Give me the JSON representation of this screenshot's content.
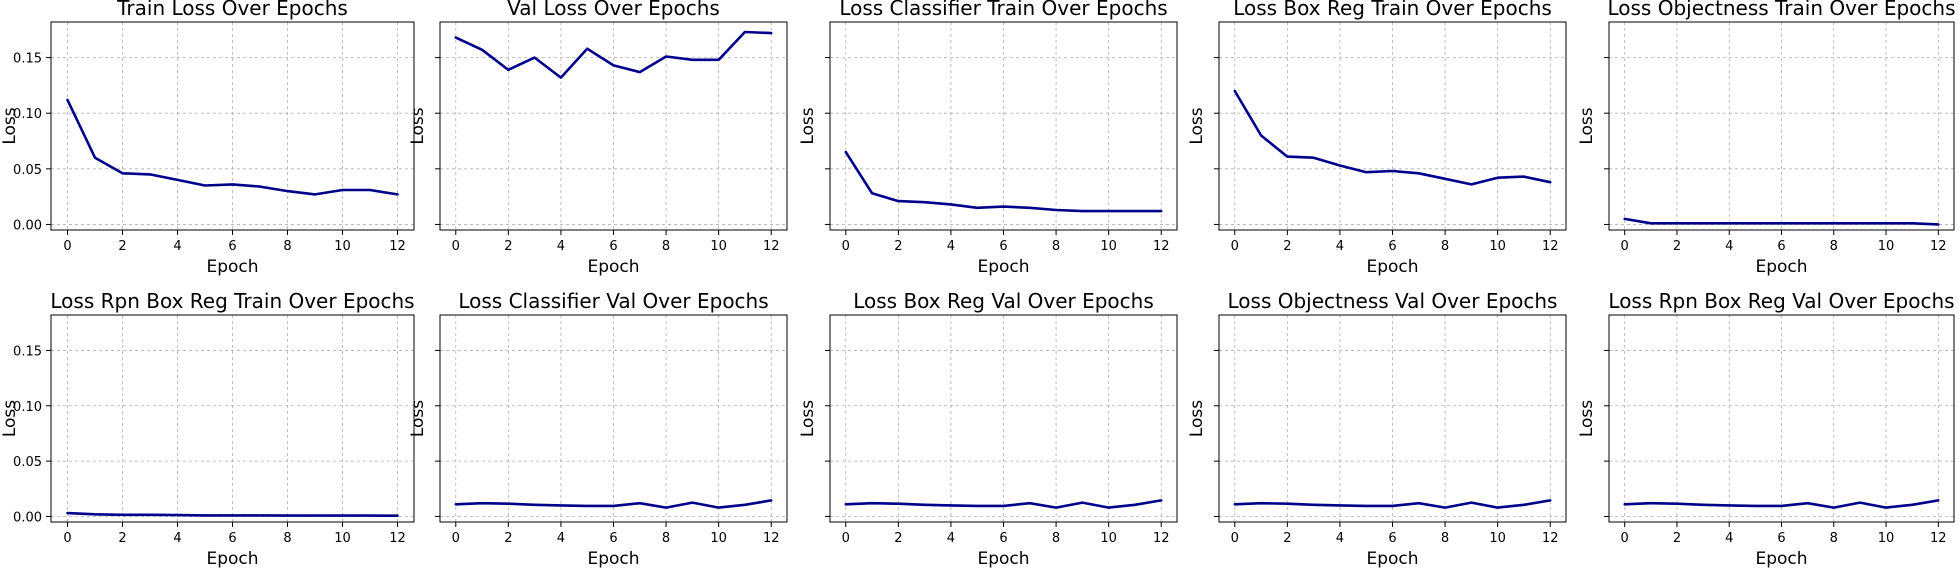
{
  "style": {
    "line_color": "#00008b",
    "grid": true
  },
  "chart_data": [
    {
      "type": "line",
      "title": "Train Loss Over Epochs",
      "xlabel": "Epoch",
      "ylabel": "Loss",
      "xlim": [
        -0.6,
        12.6
      ],
      "ylim": [
        -0.005,
        0.182
      ],
      "xticks": [
        "0",
        "2",
        "4",
        "6",
        "8",
        "10",
        "12"
      ],
      "yticks": [
        "0.00",
        "0.05",
        "0.10",
        "0.15"
      ],
      "x": [
        0,
        1,
        2,
        3,
        4,
        5,
        6,
        7,
        8,
        9,
        10,
        11,
        12
      ],
      "y": [
        0.112,
        0.06,
        0.046,
        0.045,
        0.04,
        0.035,
        0.036,
        0.034,
        0.03,
        0.027,
        0.031,
        0.031,
        0.027
      ]
    },
    {
      "type": "line",
      "title": "Val Loss Over Epochs",
      "xlabel": "Epoch",
      "ylabel": "Loss",
      "xlim": [
        -0.6,
        12.6
      ],
      "ylim": [
        -0.005,
        0.182
      ],
      "xticks": [
        "0",
        "2",
        "4",
        "6",
        "8",
        "10",
        "12"
      ],
      "yticks": [],
      "x": [
        0,
        1,
        2,
        3,
        4,
        5,
        6,
        7,
        8,
        9,
        10,
        11,
        12
      ],
      "y": [
        0.168,
        0.157,
        0.139,
        0.15,
        0.132,
        0.158,
        0.143,
        0.137,
        0.151,
        0.148,
        0.148,
        0.173,
        0.172
      ]
    },
    {
      "type": "line",
      "title": "Loss Classifier Train Over Epochs",
      "xlabel": "Epoch",
      "ylabel": "Loss",
      "xlim": [
        -0.6,
        12.6
      ],
      "ylim": [
        -0.005,
        0.182
      ],
      "xticks": [
        "0",
        "2",
        "4",
        "6",
        "8",
        "10",
        "12"
      ],
      "yticks": [],
      "x": [
        0,
        1,
        2,
        3,
        4,
        5,
        6,
        7,
        8,
        9,
        10,
        11,
        12
      ],
      "y": [
        0.065,
        0.028,
        0.021,
        0.02,
        0.018,
        0.015,
        0.016,
        0.015,
        0.013,
        0.012,
        0.012,
        0.012,
        0.012
      ]
    },
    {
      "type": "line",
      "title": "Loss Box Reg Train Over Epochs",
      "xlabel": "Epoch",
      "ylabel": "Loss",
      "xlim": [
        -0.6,
        12.6
      ],
      "ylim": [
        -0.005,
        0.182
      ],
      "xticks": [
        "0",
        "2",
        "4",
        "6",
        "8",
        "10",
        "12"
      ],
      "yticks": [],
      "x": [
        0,
        1,
        2,
        3,
        4,
        5,
        6,
        7,
        8,
        9,
        10,
        11,
        12
      ],
      "y": [
        0.12,
        0.08,
        0.061,
        0.06,
        0.053,
        0.047,
        0.048,
        0.046,
        0.041,
        0.036,
        0.042,
        0.043,
        0.038
      ]
    },
    {
      "type": "line",
      "title": "Loss Objectness Train Over Epochs",
      "xlabel": "Epoch",
      "ylabel": "Loss",
      "xlim": [
        -0.6,
        12.6
      ],
      "ylim": [
        -0.005,
        0.182
      ],
      "xticks": [
        "0",
        "2",
        "4",
        "6",
        "8",
        "10",
        "12"
      ],
      "yticks": [],
      "x": [
        0,
        1,
        2,
        3,
        4,
        5,
        6,
        7,
        8,
        9,
        10,
        11,
        12
      ],
      "y": [
        0.005,
        0.001,
        0.001,
        0.001,
        0.001,
        0.001,
        0.001,
        0.001,
        0.001,
        0.001,
        0.001,
        0.001,
        0.0
      ]
    },
    {
      "type": "line",
      "title": "Loss Rpn Box Reg Train Over Epochs",
      "xlabel": "Epoch",
      "ylabel": "Loss",
      "xlim": [
        -0.6,
        12.6
      ],
      "ylim": [
        -0.005,
        0.182
      ],
      "xticks": [
        "0",
        "2",
        "4",
        "6",
        "8",
        "10",
        "12"
      ],
      "yticks": [
        "0.00",
        "0.05",
        "0.10",
        "0.15"
      ],
      "x": [
        0,
        1,
        2,
        3,
        4,
        5,
        6,
        7,
        8,
        9,
        10,
        11,
        12
      ],
      "y": [
        0.003,
        0.002,
        0.0015,
        0.0015,
        0.0012,
        0.001,
        0.001,
        0.001,
        0.0008,
        0.0008,
        0.0008,
        0.0008,
        0.0007
      ]
    },
    {
      "type": "line",
      "title": "Loss Classifier Val Over Epochs",
      "xlabel": "Epoch",
      "ylabel": "Loss",
      "xlim": [
        -0.6,
        12.6
      ],
      "ylim": [
        -0.005,
        0.182
      ],
      "xticks": [
        "0",
        "2",
        "4",
        "6",
        "8",
        "10",
        "12"
      ],
      "yticks": [],
      "x": [
        0,
        1,
        2,
        3,
        4,
        5,
        6,
        7,
        8,
        9,
        10,
        11,
        12
      ],
      "y": [
        0.011,
        0.012,
        0.0115,
        0.0105,
        0.01,
        0.0095,
        0.0095,
        0.012,
        0.008,
        0.0125,
        0.008,
        0.0105,
        0.0145
      ]
    },
    {
      "type": "line",
      "title": "Loss Box Reg Val Over Epochs",
      "xlabel": "Epoch",
      "ylabel": "Loss",
      "xlim": [
        -0.6,
        12.6
      ],
      "ylim": [
        -0.005,
        0.182
      ],
      "xticks": [
        "0",
        "2",
        "4",
        "6",
        "8",
        "10",
        "12"
      ],
      "yticks": [],
      "x": [
        0,
        1,
        2,
        3,
        4,
        5,
        6,
        7,
        8,
        9,
        10,
        11,
        12
      ],
      "y": [
        0.011,
        0.012,
        0.0115,
        0.0105,
        0.01,
        0.0095,
        0.0095,
        0.012,
        0.008,
        0.0125,
        0.008,
        0.0105,
        0.0145
      ]
    },
    {
      "type": "line",
      "title": "Loss Objectness Val Over Epochs",
      "xlabel": "Epoch",
      "ylabel": "Loss",
      "xlim": [
        -0.6,
        12.6
      ],
      "ylim": [
        -0.005,
        0.182
      ],
      "xticks": [
        "0",
        "2",
        "4",
        "6",
        "8",
        "10",
        "12"
      ],
      "yticks": [],
      "x": [
        0,
        1,
        2,
        3,
        4,
        5,
        6,
        7,
        8,
        9,
        10,
        11,
        12
      ],
      "y": [
        0.011,
        0.012,
        0.0115,
        0.0105,
        0.01,
        0.0095,
        0.0095,
        0.012,
        0.008,
        0.0125,
        0.008,
        0.0105,
        0.0145
      ]
    },
    {
      "type": "line",
      "title": "Loss Rpn Box Reg Val Over Epochs",
      "xlabel": "Epoch",
      "ylabel": "Loss",
      "xlim": [
        -0.6,
        12.6
      ],
      "ylim": [
        -0.005,
        0.182
      ],
      "xticks": [
        "0",
        "2",
        "4",
        "6",
        "8",
        "10",
        "12"
      ],
      "yticks": [],
      "x": [
        0,
        1,
        2,
        3,
        4,
        5,
        6,
        7,
        8,
        9,
        10,
        11,
        12
      ],
      "y": [
        0.011,
        0.012,
        0.0115,
        0.0105,
        0.01,
        0.0095,
        0.0095,
        0.012,
        0.008,
        0.0125,
        0.008,
        0.0105,
        0.0145
      ]
    }
  ]
}
